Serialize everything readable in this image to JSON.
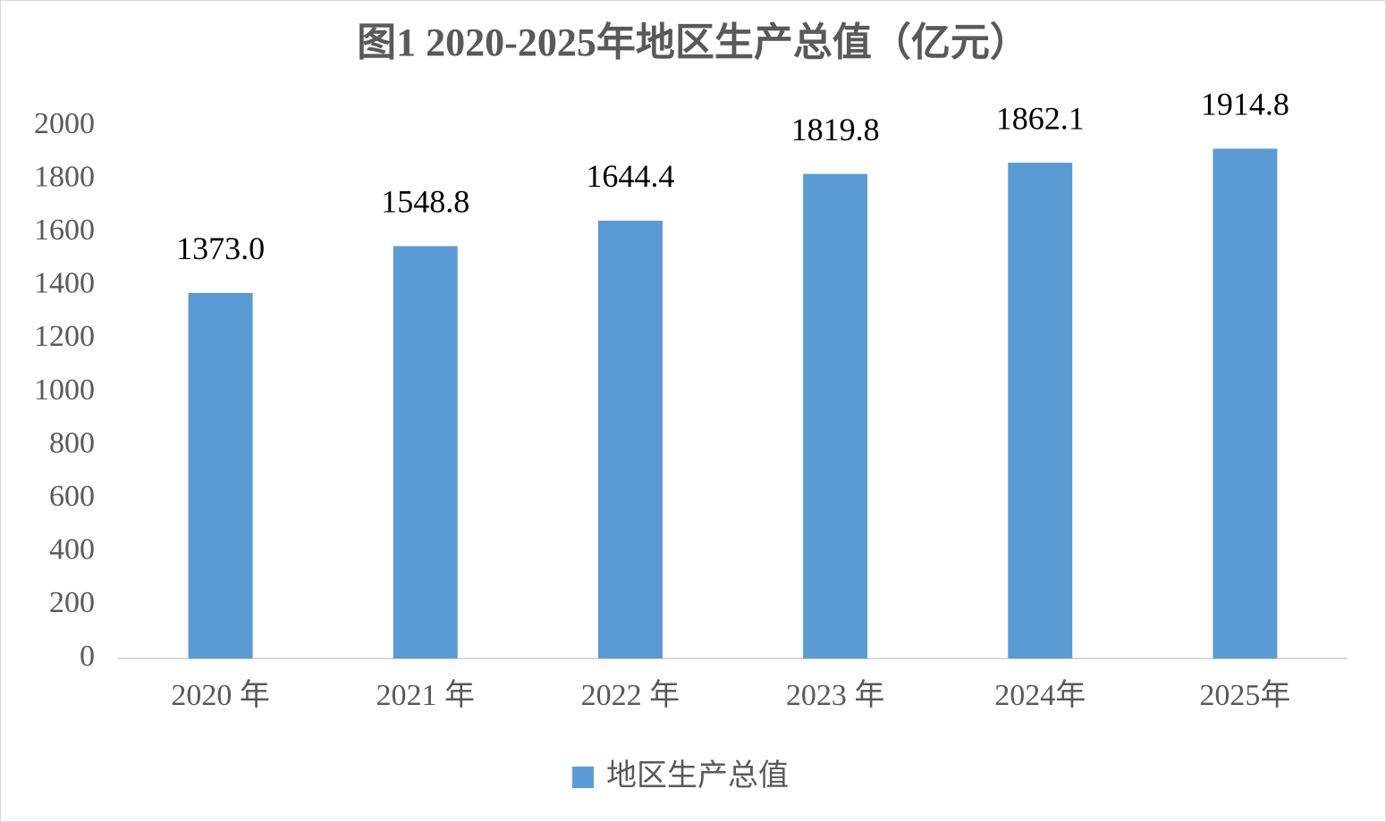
{
  "chart_data": {
    "type": "bar",
    "title": "图1  2020-2025年地区生产总值（亿元）",
    "categories": [
      "2020 年",
      "2021 年",
      "2022 年",
      "2023 年",
      "2024年",
      "2025年"
    ],
    "series": [
      {
        "name": "地区生产总值",
        "color": "#5b9bd5",
        "values": [
          1373.0,
          1548.8,
          1644.4,
          1819.8,
          1862.1,
          1914.8
        ],
        "value_labels": [
          "1373.0",
          "1548.8",
          "1644.4",
          "1819.8",
          "1862.1",
          "1914.8"
        ]
      }
    ],
    "ylim": [
      0,
      2000
    ],
    "yticks": [
      0,
      200,
      400,
      600,
      800,
      1000,
      1200,
      1400,
      1600,
      1800,
      2000
    ],
    "grid": false,
    "legend": "bottom"
  }
}
